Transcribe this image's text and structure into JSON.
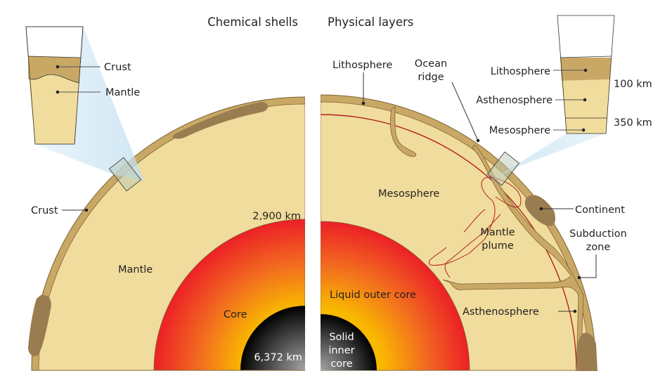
{
  "titles": {
    "left": "Chemical shells",
    "right": "Physical layers"
  },
  "left": {
    "inset": {
      "crust": "Crust",
      "mantle": "Mantle"
    },
    "labels": {
      "crust": "Crust",
      "mantle": "Mantle",
      "core": "Core",
      "depth_core": "2,900 km",
      "depth_center": "6,372 km"
    }
  },
  "right": {
    "inset": {
      "lithosphere": "Lithosphere",
      "asthenosphere": "Asthenosphere",
      "mesosphere": "Mesosphere",
      "depth_100": "100 km",
      "depth_350": "350 km"
    },
    "labels": {
      "lithosphere": "Lithosphere",
      "ocean_ridge": [
        "Ocean",
        "ridge"
      ],
      "mesosphere": "Mesosphere",
      "continent": "Continent",
      "mantle_plume": [
        "Mantle",
        "plume"
      ],
      "subduction_zone": [
        "Subduction",
        "zone"
      ],
      "liquid_outer_core": "Liquid outer core",
      "asthenosphere": "Asthenosphere",
      "solid_inner_core": [
        "Solid",
        "inner",
        "core"
      ]
    }
  },
  "colors": {
    "mantle": "#f0dc9c",
    "crust": "#c9a865",
    "continent": "#9a7c51",
    "outline": "#7d6233",
    "boundary": "#b3201e",
    "core_outer": "#ec2027",
    "core_inner": "#f9b800",
    "zoom_cone": "#cfe6f4"
  }
}
